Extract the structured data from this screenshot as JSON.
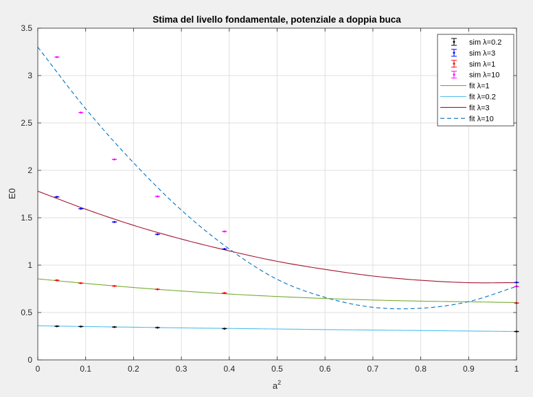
{
  "chart_data": {
    "type": "scatter",
    "title": "Stima del livello fondamentale, potenziale a doppia buca",
    "xlabel": "a",
    "xlabel_sup": "2",
    "ylabel": "E0",
    "xlim": [
      0,
      1
    ],
    "ylim": [
      0,
      3.5
    ],
    "xticks": [
      "0",
      "0.1",
      "0.2",
      "0.3",
      "0.4",
      "0.5",
      "0.6",
      "0.7",
      "0.8",
      "0.9",
      "1"
    ],
    "yticks": [
      "0",
      "0.5",
      "1",
      "1.5",
      "2",
      "2.5",
      "3",
      "3.5"
    ],
    "grid": true,
    "legend_position": "top-right",
    "x": [
      0.04,
      0.09,
      0.16,
      0.25,
      0.39,
      1.0
    ],
    "series": [
      {
        "name": "sim λ=0.2",
        "kind": "errorbar",
        "color": "#000000",
        "values": [
          0.355,
          0.352,
          0.347,
          0.341,
          0.33,
          0.3
        ]
      },
      {
        "name": "sim λ=3",
        "kind": "errorbar",
        "color": "#0000ff",
        "values": [
          1.72,
          1.595,
          1.455,
          1.325,
          1.17,
          0.817
        ]
      },
      {
        "name": "sim λ=1",
        "kind": "errorbar",
        "color": "#ff0000",
        "values": [
          0.84,
          0.81,
          0.78,
          0.745,
          0.705,
          0.6
        ]
      },
      {
        "name": "sim λ=10",
        "kind": "errorbar",
        "color": "#ff00ff",
        "values": [
          3.195,
          2.61,
          2.115,
          1.725,
          1.355,
          0.775
        ]
      },
      {
        "name": "fit λ=1",
        "kind": "line",
        "color": "#77ac30",
        "dash": false,
        "x": [
          0,
          0.1,
          0.2,
          0.3,
          0.4,
          0.5,
          0.6,
          0.7,
          0.8,
          0.9,
          1.0
        ],
        "values": [
          0.855,
          0.807,
          0.764,
          0.727,
          0.695,
          0.669,
          0.648,
          0.632,
          0.62,
          0.613,
          0.605
        ]
      },
      {
        "name": "fit λ=0.2",
        "kind": "line",
        "color": "#4dbeee",
        "dash": false,
        "x": [
          0,
          0.1,
          0.2,
          0.3,
          0.4,
          0.5,
          0.6,
          0.7,
          0.8,
          0.9,
          1.0
        ],
        "values": [
          0.36,
          0.352,
          0.345,
          0.338,
          0.332,
          0.326,
          0.32,
          0.315,
          0.31,
          0.305,
          0.3
        ]
      },
      {
        "name": "fit λ=3",
        "kind": "line",
        "color": "#a2142f",
        "dash": false,
        "x": [
          0,
          0.1,
          0.2,
          0.3,
          0.4,
          0.5,
          0.6,
          0.7,
          0.8,
          0.9,
          1.0
        ],
        "values": [
          1.78,
          1.59,
          1.42,
          1.275,
          1.15,
          1.04,
          0.955,
          0.885,
          0.84,
          0.815,
          0.815
        ]
      },
      {
        "name": "fit λ=10",
        "kind": "line",
        "color": "#0072bd",
        "dash": true,
        "x": [
          0,
          0.1,
          0.2,
          0.3,
          0.4,
          0.5,
          0.6,
          0.7,
          0.8,
          0.9,
          1.0
        ],
        "values": [
          3.3,
          2.65,
          2.08,
          1.58,
          1.17,
          0.85,
          0.66,
          0.555,
          0.545,
          0.615,
          0.775
        ]
      }
    ]
  }
}
